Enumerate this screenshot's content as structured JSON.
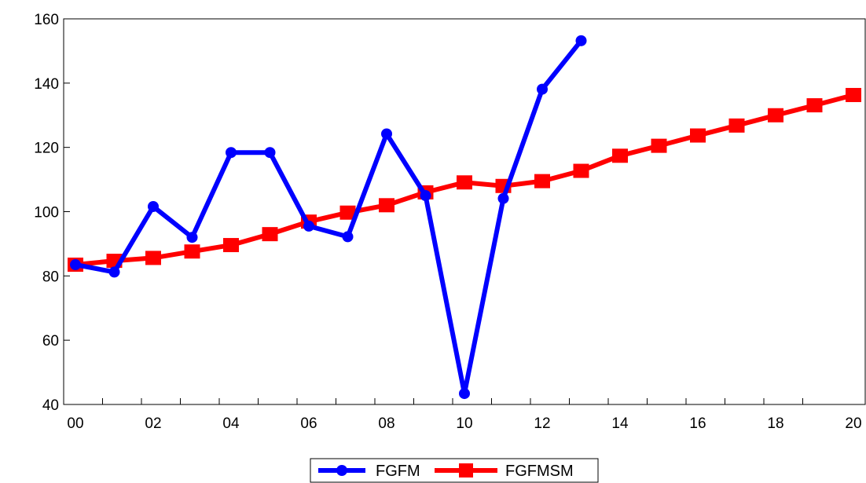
{
  "chart_data": {
    "type": "line",
    "title": "",
    "xlabel": "",
    "ylabel": "",
    "x": [
      "00",
      "01",
      "02",
      "03",
      "04",
      "05",
      "06",
      "07",
      "08",
      "09",
      "10",
      "11",
      "12",
      "13",
      "14",
      "15",
      "16",
      "17",
      "18",
      "19",
      "20"
    ],
    "x_tick_labels": [
      "00",
      "02",
      "04",
      "06",
      "08",
      "10",
      "12",
      "14",
      "16",
      "18",
      "20"
    ],
    "ylim": [
      40,
      160
    ],
    "y_ticks": [
      40,
      60,
      80,
      100,
      120,
      140,
      160
    ],
    "grid": false,
    "legend_position": "bottom-center",
    "series": [
      {
        "name": "FGFM",
        "color": "#0000ff",
        "marker": "circle",
        "values": [
          83.5,
          81.2,
          101.6,
          92.0,
          118.4,
          118.4,
          95.5,
          92.2,
          124.2,
          105.0,
          43.4,
          104.1,
          138.1,
          153.2,
          null,
          null,
          null,
          null,
          null,
          null,
          null
        ]
      },
      {
        "name": "FGFMSM",
        "color": "#ff0000",
        "marker": "square",
        "values": [
          83.5,
          84.7,
          85.6,
          87.6,
          89.6,
          93.0,
          96.9,
          99.7,
          102.0,
          106.0,
          109.1,
          108.0,
          109.5,
          112.7,
          117.4,
          120.5,
          123.7,
          126.8,
          130.0,
          133.1,
          136.3
        ]
      }
    ]
  }
}
